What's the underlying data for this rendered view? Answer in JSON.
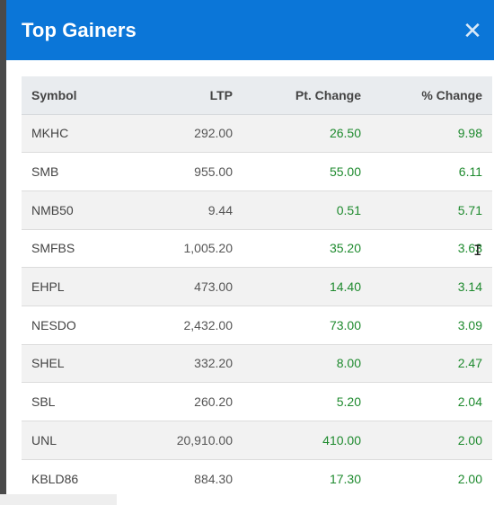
{
  "dialog": {
    "title": "Top Gainers",
    "close_symbol": "✕",
    "accent_color": "#0b76d8",
    "positive_color": "#1e8a2e"
  },
  "table": {
    "headers": {
      "symbol": "Symbol",
      "ltp": "LTP",
      "pt_change": "Pt. Change",
      "pct_change": "% Change"
    },
    "rows": [
      {
        "symbol": "MKHC",
        "ltp": "292.00",
        "pt_change": "26.50",
        "pct_change": "9.98"
      },
      {
        "symbol": "SMB",
        "ltp": "955.00",
        "pt_change": "55.00",
        "pct_change": "6.11"
      },
      {
        "symbol": "NMB50",
        "ltp": "9.44",
        "pt_change": "0.51",
        "pct_change": "5.71"
      },
      {
        "symbol": "SMFBS",
        "ltp": "1,005.20",
        "pt_change": "35.20",
        "pct_change": "3.63"
      },
      {
        "symbol": "EHPL",
        "ltp": "473.00",
        "pt_change": "14.40",
        "pct_change": "3.14"
      },
      {
        "symbol": "NESDO",
        "ltp": "2,432.00",
        "pt_change": "73.00",
        "pct_change": "3.09"
      },
      {
        "symbol": "SHEL",
        "ltp": "332.20",
        "pt_change": "8.00",
        "pct_change": "2.47"
      },
      {
        "symbol": "SBL",
        "ltp": "260.20",
        "pt_change": "5.20",
        "pct_change": "2.04"
      },
      {
        "symbol": "UNL",
        "ltp": "20,910.00",
        "pt_change": "410.00",
        "pct_change": "2.00"
      },
      {
        "symbol": "KBLD86",
        "ltp": "884.30",
        "pt_change": "17.30",
        "pct_change": "2.00"
      }
    ]
  },
  "cursor": {
    "glyph": "I",
    "icon": "text-cursor-icon"
  }
}
